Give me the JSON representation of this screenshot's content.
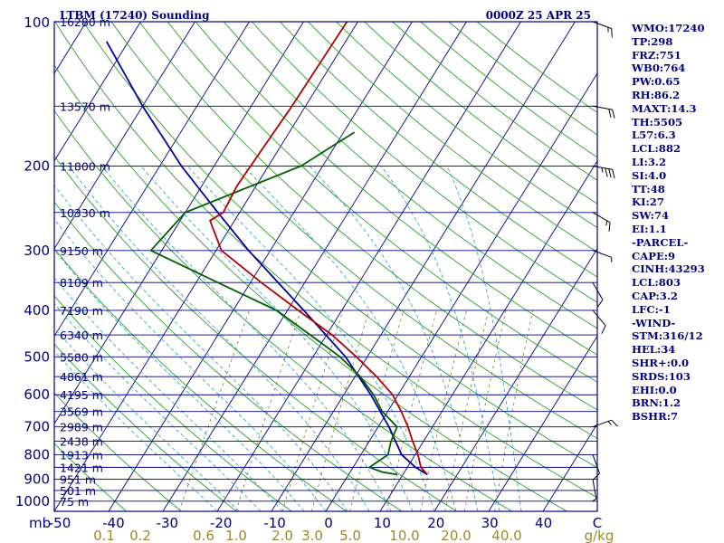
{
  "header": {
    "station": "LTBM (17240) Sounding",
    "time": "0000Z 25 APR 25"
  },
  "chart_data": {
    "type": "skew-t",
    "title": "LTBM (17240) Sounding",
    "subtitle": "0000Z 25 APR 25",
    "pressure_levels": [
      100,
      200,
      300,
      400,
      500,
      600,
      700,
      800,
      900,
      1000
    ],
    "pressure_label_unit": "mb",
    "temperature_ticks": [
      "-50",
      "-40",
      "-30",
      "-20",
      "-10",
      "0",
      "10",
      "20",
      "30",
      "40",
      "C"
    ],
    "mixing_ratio_ticks": [
      "0.1",
      "0.2",
      "0.6",
      "1.0",
      "2.0",
      "3.0",
      "5.0",
      "10.0",
      "20.0",
      "40.0",
      "g/kg"
    ],
    "height_labels": [
      {
        "p": 100,
        "text": "16280 m"
      },
      {
        "p": 150,
        "text": "13570 m"
      },
      {
        "p": 200,
        "text": "11800 m"
      },
      {
        "p": 250,
        "text": "10330 m"
      },
      {
        "p": 300,
        "text": "9150 m"
      },
      {
        "p": 350,
        "text": "8109 m"
      },
      {
        "p": 400,
        "text": "7190 m"
      },
      {
        "p": 450,
        "text": "6340 m"
      },
      {
        "p": 500,
        "text": "5580 m"
      },
      {
        "p": 550,
        "text": "4861 m"
      },
      {
        "p": 600,
        "text": "4195 m"
      },
      {
        "p": 650,
        "text": "3569 m"
      },
      {
        "p": 700,
        "text": "2989 m"
      },
      {
        "p": 750,
        "text": "2438 m"
      },
      {
        "p": 800,
        "text": "1913 m"
      },
      {
        "p": 850,
        "text": "1421 m"
      },
      {
        "p": 900,
        "text": "951 m"
      },
      {
        "p": 950,
        "text": "501 m"
      },
      {
        "p": 1000,
        "text": "75 m"
      }
    ],
    "temperature": [
      {
        "p": 100,
        "t": -52
      },
      {
        "p": 150,
        "t": -52.5
      },
      {
        "p": 180,
        "t": -53
      },
      {
        "p": 220,
        "t": -53.5
      },
      {
        "p": 250,
        "t": -53
      },
      {
        "p": 260,
        "t": -54.5
      },
      {
        "p": 300,
        "t": -49
      },
      {
        "p": 350,
        "t": -38
      },
      {
        "p": 400,
        "t": -28
      },
      {
        "p": 450,
        "t": -19
      },
      {
        "p": 500,
        "t": -12
      },
      {
        "p": 550,
        "t": -6
      },
      {
        "p": 600,
        "t": -1
      },
      {
        "p": 650,
        "t": 2.5
      },
      {
        "p": 700,
        "t": 5.5
      },
      {
        "p": 750,
        "t": 8
      },
      {
        "p": 800,
        "t": 10.5
      },
      {
        "p": 850,
        "t": 12.5
      },
      {
        "p": 880,
        "t": 14.5
      }
    ],
    "dewpoint": [
      {
        "p": 170,
        "t": -38
      },
      {
        "p": 200,
        "t": -44
      },
      {
        "p": 250,
        "t": -60
      },
      {
        "p": 300,
        "t": -62
      },
      {
        "p": 350,
        "t": -46
      },
      {
        "p": 400,
        "t": -32
      },
      {
        "p": 450,
        "t": -23
      },
      {
        "p": 500,
        "t": -15
      },
      {
        "p": 550,
        "t": -9
      },
      {
        "p": 600,
        "t": -4.5
      },
      {
        "p": 650,
        "t": -1
      },
      {
        "p": 700,
        "t": 3.5
      },
      {
        "p": 750,
        "t": 4
      },
      {
        "p": 800,
        "t": 5
      },
      {
        "p": 850,
        "t": 3
      },
      {
        "p": 870,
        "t": 6
      },
      {
        "p": 880,
        "t": 9
      }
    ],
    "parcel": [
      {
        "p": 880,
        "t": 14.5
      },
      {
        "p": 850,
        "t": 11.5
      },
      {
        "p": 800,
        "t": 7.5
      },
      {
        "p": 700,
        "t": 2
      },
      {
        "p": 600,
        "t": -5
      },
      {
        "p": 500,
        "t": -14
      },
      {
        "p": 400,
        "t": -27
      },
      {
        "p": 300,
        "t": -44
      },
      {
        "p": 250,
        "t": -54
      },
      {
        "p": 200,
        "t": -66
      },
      {
        "p": 150,
        "t": -80
      },
      {
        "p": 110,
        "t": -94
      }
    ],
    "colors": {
      "frame": "#000080",
      "isobar": "#000080",
      "isotherm": "#000080",
      "dry_adiabat": "#2aa02a",
      "moist_adiabat": "#33aacc",
      "mixing_ratio": "#7a7a22",
      "temperature": "#b00000",
      "dewpoint": "#006000",
      "parcel": "#000099",
      "wind": "#000000"
    },
    "wind_barbs": [
      {
        "p": 100,
        "dir": 290,
        "spd": 15
      },
      {
        "p": 150,
        "dir": 280,
        "spd": 20
      },
      {
        "p": 200,
        "dir": 280,
        "spd": 35
      },
      {
        "p": 250,
        "dir": 300,
        "spd": 15
      },
      {
        "p": 300,
        "dir": 290,
        "spd": 5
      },
      {
        "p": 350,
        "dir": 330,
        "spd": 10
      },
      {
        "p": 400,
        "dir": 320,
        "spd": 10
      },
      {
        "p": 700,
        "dir": 250,
        "spd": 15
      },
      {
        "p": 800,
        "dir": 340,
        "spd": 10
      },
      {
        "p": 900,
        "dir": 350,
        "spd": 5
      }
    ]
  },
  "indices": [
    "WMO:17240",
    "TP:298",
    "FRZ:751",
    "WB0:764",
    "PW:0.65",
    "RH:86.2",
    "MAXT:14.3",
    "TH:5505",
    "L57:6.3",
    "LCL:882",
    "LI:3.2",
    "SI:4.0",
    "TT:48",
    "KI:27",
    "SW:74",
    "EI:1.1",
    "-PARCEL-",
    "CAPE:9",
    "CINH:43293",
    "LCL:803",
    "CAP:3.2",
    "LFC:-1",
    "-WIND-",
    "STM:316/12",
    "HEL:34",
    "SHR+:0.0",
    "SRDS:103",
    "EHI:0.0",
    "BRN:1.2",
    "BSHR:7"
  ]
}
